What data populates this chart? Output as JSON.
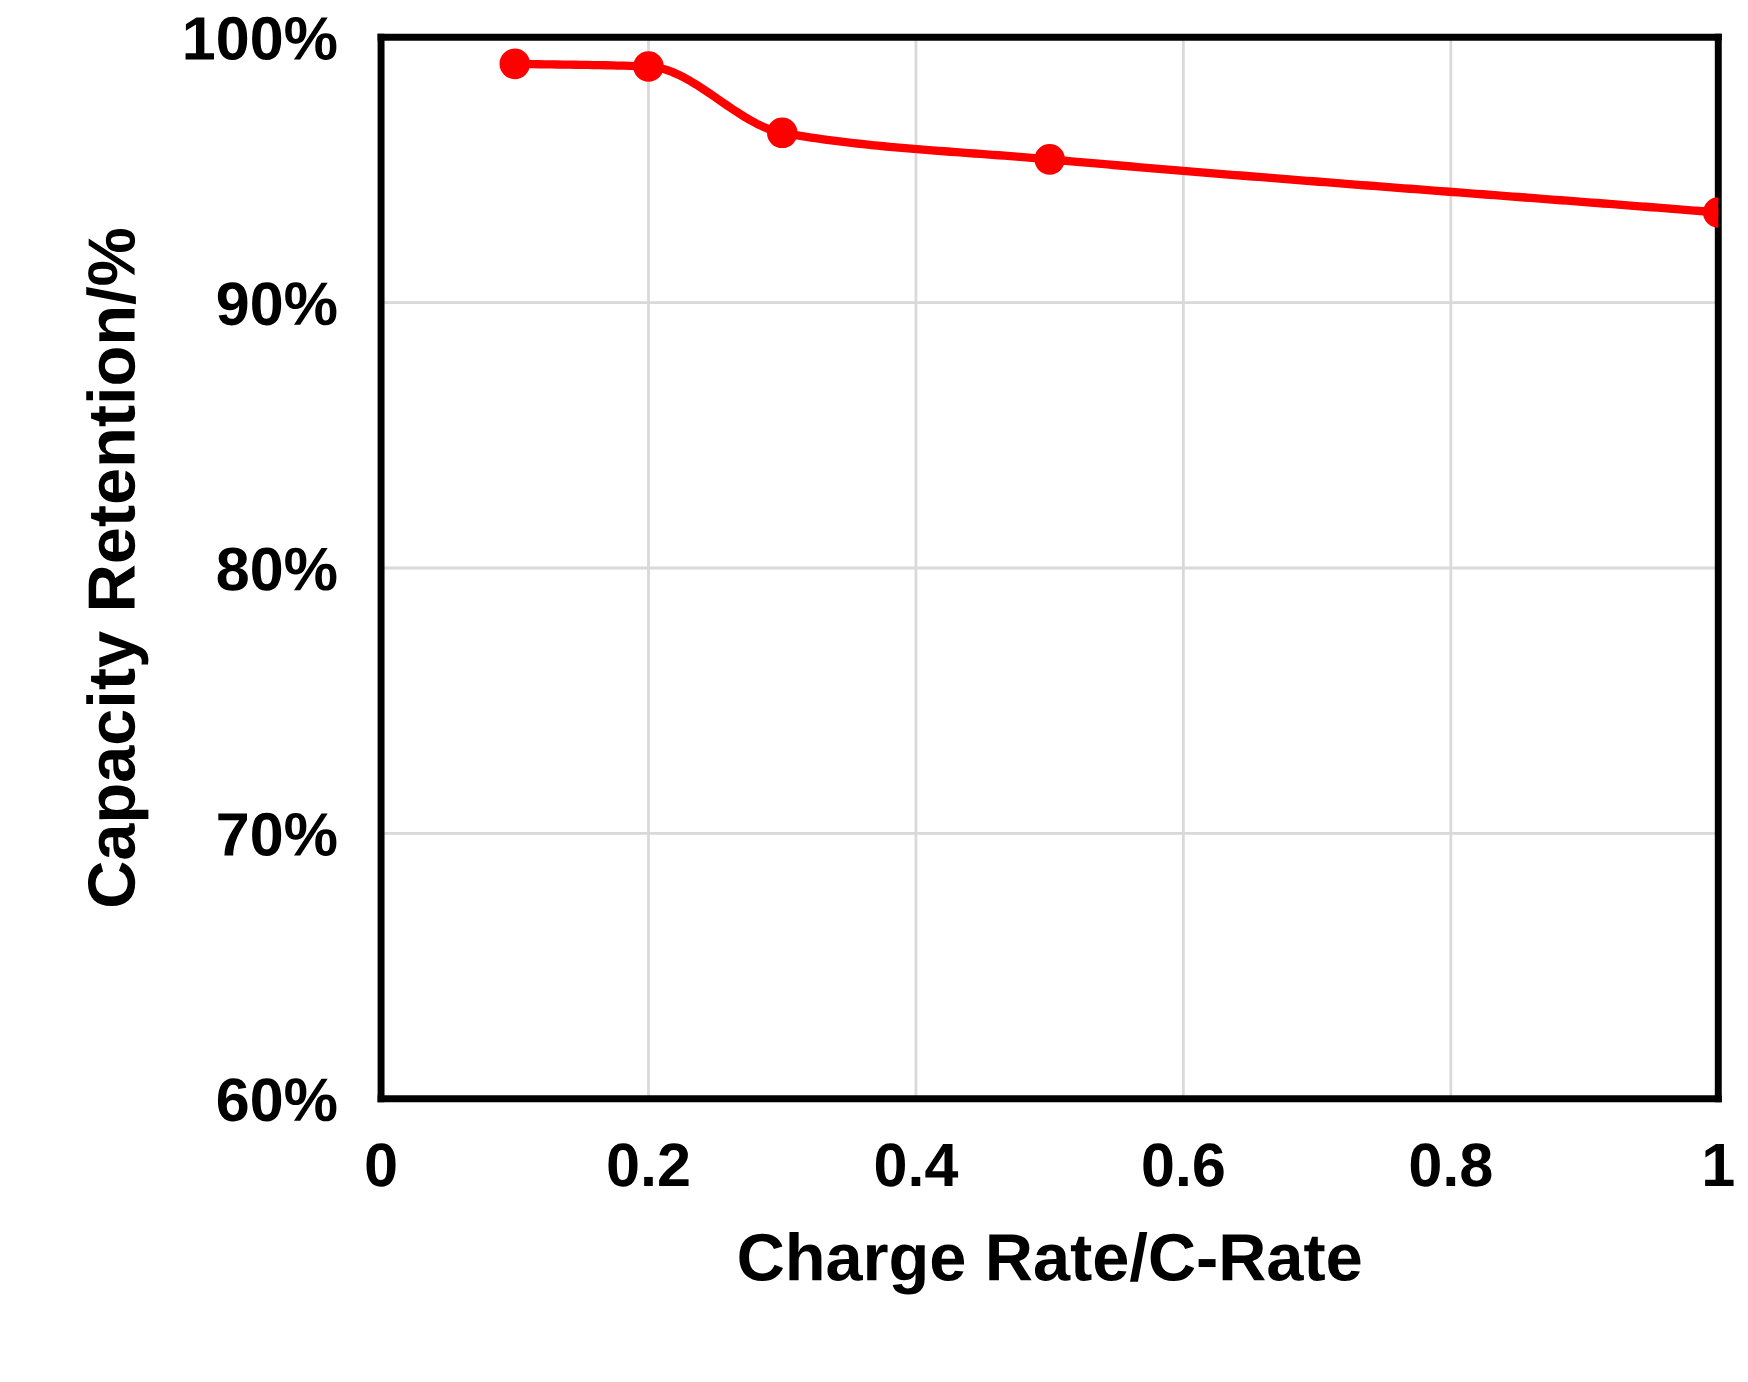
{
  "chart_data": {
    "type": "line",
    "xlabel": "Charge Rate/C-Rate",
    "ylabel": "Capacity Retention/%",
    "x": [
      0.1,
      0.2,
      0.3,
      0.5,
      1
    ],
    "series": [
      {
        "color": "#ff0000",
        "values": [
          99.0,
          98.9,
          96.4,
          95.4,
          93.4
        ]
      }
    ],
    "xlim": [
      0,
      1
    ],
    "xticks": [
      0,
      0.2,
      0.4,
      0.6,
      0.8,
      1
    ],
    "ylim": [
      60,
      100
    ],
    "yticks": [
      {
        "value": 60,
        "label": "60%"
      },
      {
        "value": 70,
        "label": "70%"
      },
      {
        "value": 80,
        "label": "80%"
      },
      {
        "value": 90,
        "label": "90%"
      },
      {
        "value": 100,
        "label": "100%"
      }
    ],
    "grid": true,
    "marker": "circle",
    "line_style": "solid"
  }
}
